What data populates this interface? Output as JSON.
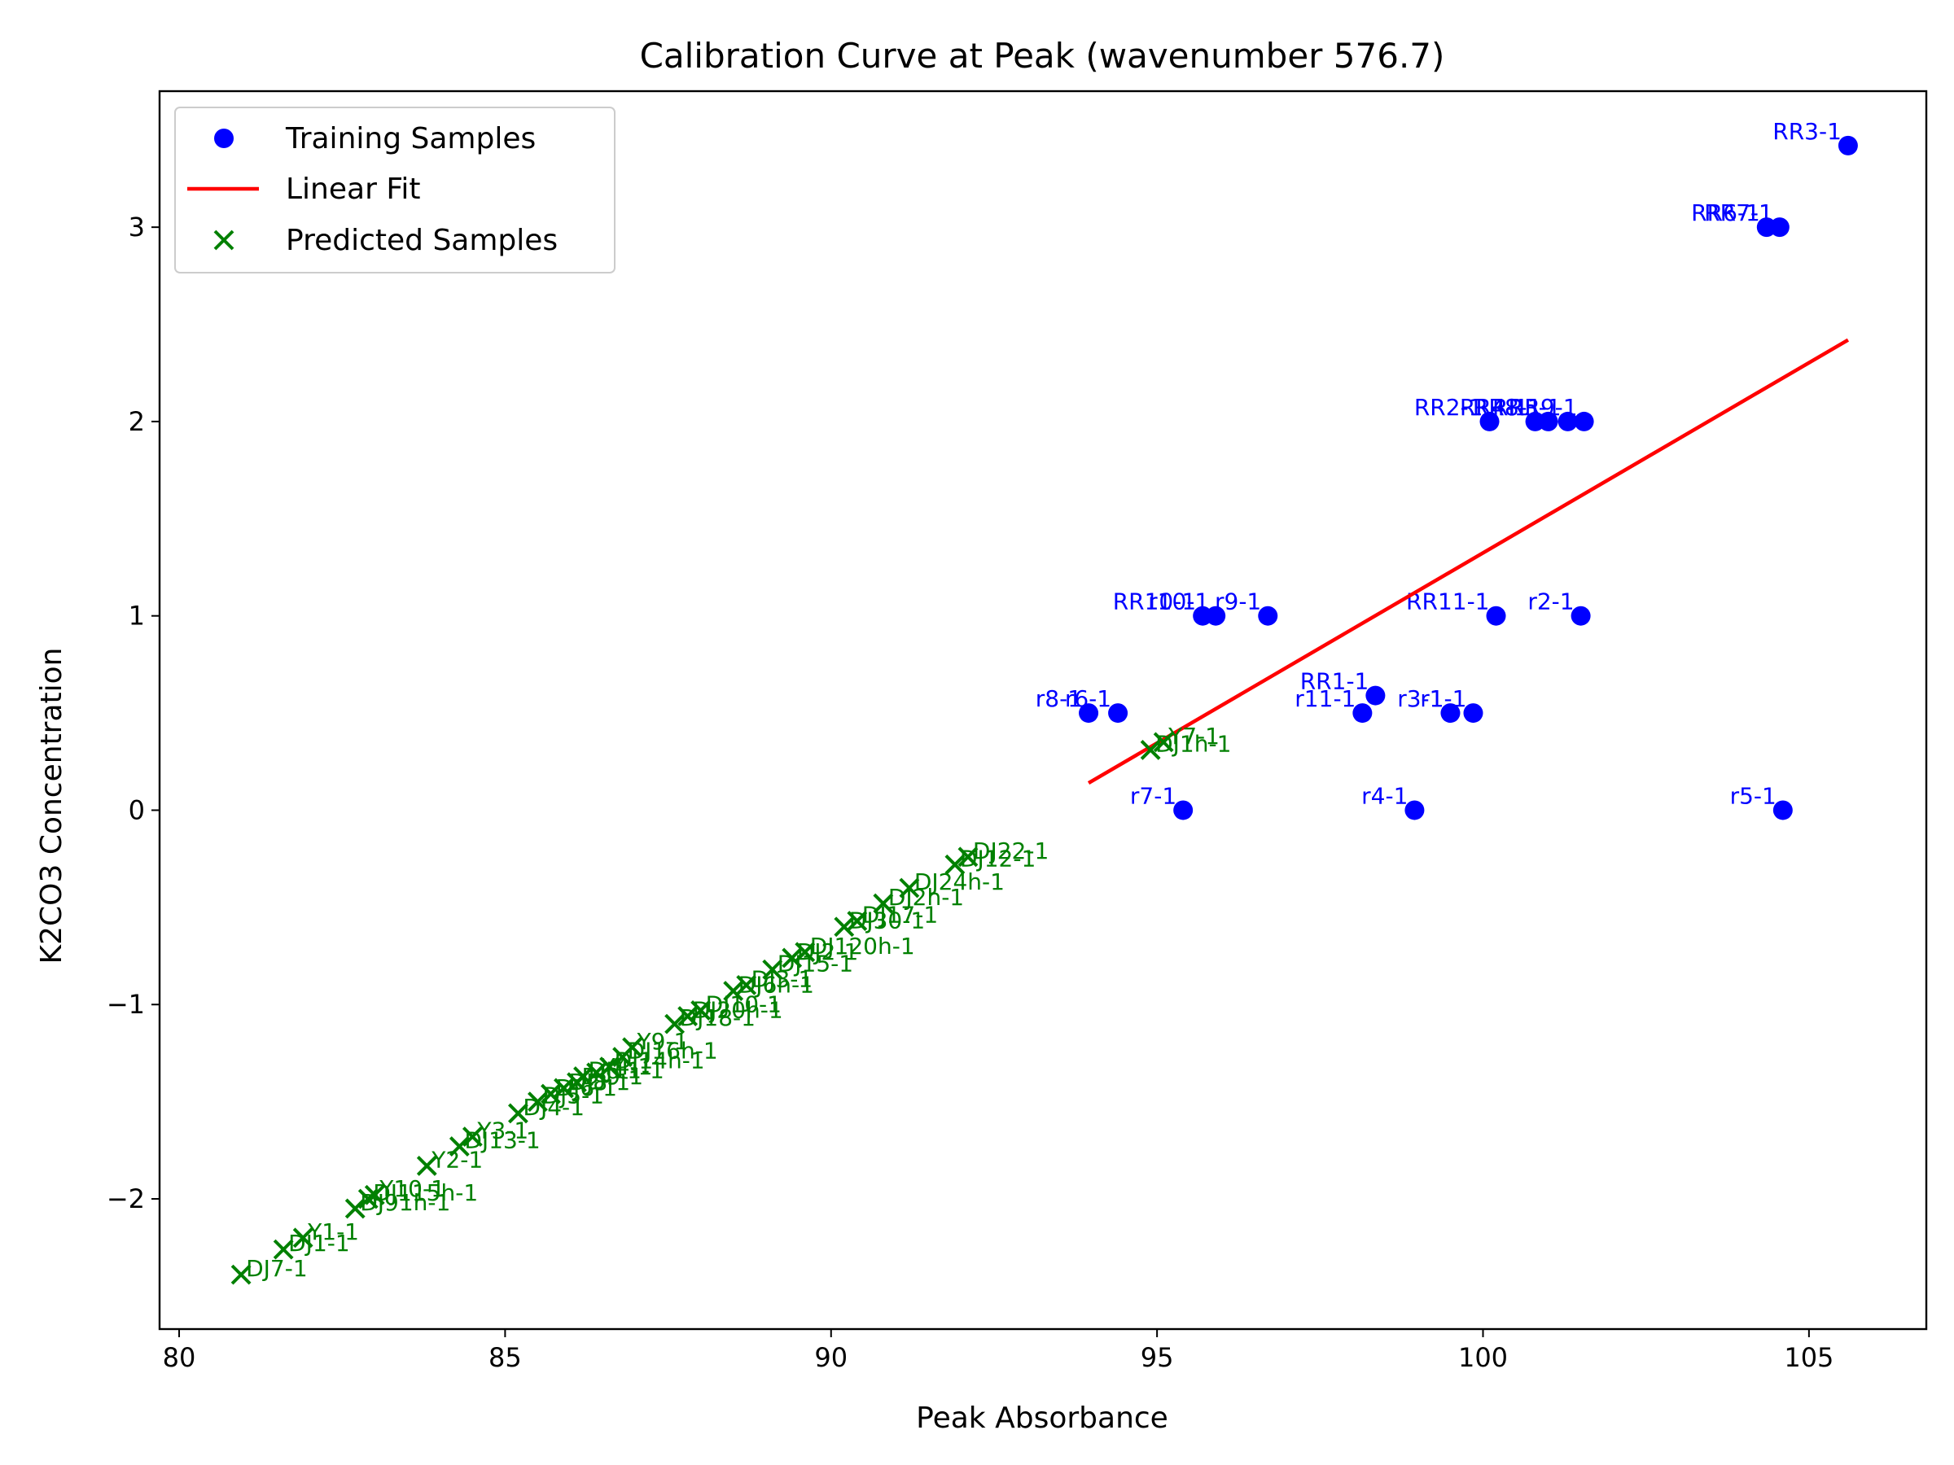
{
  "chart_data": {
    "type": "scatter",
    "title": "Calibration Curve at Peak (wavenumber 576.7)",
    "xlabel": "Peak Absorbance",
    "ylabel": "K2CO3 Concentration",
    "xlim": [
      79.7,
      106.8
    ],
    "ylim": [
      -2.67,
      3.7
    ],
    "xticks": [
      80,
      85,
      90,
      95,
      100,
      105
    ],
    "yticks": [
      -2,
      -1,
      0,
      1,
      2,
      3
    ],
    "xtick_labels": [
      "80",
      "85",
      "90",
      "95",
      "100",
      "105"
    ],
    "ytick_labels": [
      "−2",
      "−1",
      "0",
      "1",
      "2",
      "3"
    ],
    "grid": false,
    "legend": {
      "position": "top-left",
      "entries": [
        {
          "label": "Training Samples",
          "marker": "circle",
          "color": "#0000ff"
        },
        {
          "label": "Linear Fit",
          "marker": "line",
          "color": "#ff0000"
        },
        {
          "label": "Predicted Samples",
          "marker": "x",
          "color": "#008000"
        }
      ]
    },
    "series": [
      {
        "name": "Training Samples",
        "color": "#0000ff",
        "marker": "circle",
        "points": [
          {
            "x": 105.6,
            "y": 3.42,
            "label": "RR3-1"
          },
          {
            "x": 104.35,
            "y": 3.0,
            "label": "RR6-1"
          },
          {
            "x": 104.55,
            "y": 3.0,
            "label": "RR7-1"
          },
          {
            "x": 100.1,
            "y": 2.0,
            "label": "RR2-1"
          },
          {
            "x": 100.8,
            "y": 2.0,
            "label": "RR4-1"
          },
          {
            "x": 101.0,
            "y": 2.0,
            "label": "RR8-1"
          },
          {
            "x": 101.3,
            "y": 2.0,
            "label": "RR5-1"
          },
          {
            "x": 101.55,
            "y": 2.0,
            "label": "RR9-1"
          },
          {
            "x": 95.7,
            "y": 1.0,
            "label": "RR10-1"
          },
          {
            "x": 95.9,
            "y": 1.0,
            "label": "r10-1"
          },
          {
            "x": 96.7,
            "y": 1.0,
            "label": "r9-1"
          },
          {
            "x": 100.2,
            "y": 1.0,
            "label": "RR11-1"
          },
          {
            "x": 101.5,
            "y": 1.0,
            "label": "r2-1"
          },
          {
            "x": 93.95,
            "y": 0.5,
            "label": "r8-1"
          },
          {
            "x": 94.4,
            "y": 0.5,
            "label": "r6-1"
          },
          {
            "x": 98.35,
            "y": 0.59,
            "label": "RR1-1"
          },
          {
            "x": 98.15,
            "y": 0.5,
            "label": "r11-1"
          },
          {
            "x": 99.5,
            "y": 0.5,
            "label": "r3-1"
          },
          {
            "x": 99.85,
            "y": 0.5,
            "label": "r1-1"
          },
          {
            "x": 95.4,
            "y": 0.0,
            "label": "r7-1"
          },
          {
            "x": 98.95,
            "y": 0.0,
            "label": "r4-1"
          },
          {
            "x": 104.6,
            "y": 0.0,
            "label": "r5-1"
          }
        ]
      },
      {
        "name": "Linear Fit",
        "color": "#ff0000",
        "marker": "line",
        "points": [
          {
            "x": 93.95,
            "y": 0.14
          },
          {
            "x": 105.6,
            "y": 2.42
          }
        ]
      },
      {
        "name": "Predicted Samples",
        "color": "#008000",
        "marker": "x",
        "points": [
          {
            "x": 80.95,
            "y": -2.39,
            "label": "DJ7-1"
          },
          {
            "x": 81.6,
            "y": -2.26,
            "label": "DJ1-1"
          },
          {
            "x": 81.9,
            "y": -2.2,
            "label": "Y1-1"
          },
          {
            "x": 82.7,
            "y": -2.05,
            "label": "DJ91h-1"
          },
          {
            "x": 82.9,
            "y": -2.0,
            "label": "DJ115h-1"
          },
          {
            "x": 83.0,
            "y": -1.98,
            "label": "Y10-1"
          },
          {
            "x": 83.8,
            "y": -1.83,
            "label": "Y2-1"
          },
          {
            "x": 84.3,
            "y": -1.73,
            "label": "DJ13-1"
          },
          {
            "x": 84.5,
            "y": -1.68,
            "label": "Y3-1"
          },
          {
            "x": 85.2,
            "y": -1.56,
            "label": "DJ4-1"
          },
          {
            "x": 85.5,
            "y": -1.5,
            "label": "DJ5-1"
          },
          {
            "x": 85.7,
            "y": -1.46,
            "label": "DJ6-1"
          },
          {
            "x": 85.9,
            "y": -1.43,
            "label": "DJ8-1"
          },
          {
            "x": 86.1,
            "y": -1.4,
            "label": "DJ9-1"
          },
          {
            "x": 86.2,
            "y": -1.37,
            "label": "DJ11-1"
          },
          {
            "x": 86.4,
            "y": -1.35,
            "label": "Y4-1"
          },
          {
            "x": 86.6,
            "y": -1.32,
            "label": "DJ14h-1"
          },
          {
            "x": 86.8,
            "y": -1.27,
            "label": "DJ16h-1"
          },
          {
            "x": 86.95,
            "y": -1.22,
            "label": "Y9-1"
          },
          {
            "x": 87.6,
            "y": -1.1,
            "label": "DJ18-1"
          },
          {
            "x": 87.8,
            "y": -1.06,
            "label": "DJ20h-1"
          },
          {
            "x": 88.0,
            "y": -1.03,
            "label": "DJ10-1"
          },
          {
            "x": 88.5,
            "y": -0.93,
            "label": "DJ6h-1"
          },
          {
            "x": 88.7,
            "y": -0.9,
            "label": "DJ3-1"
          },
          {
            "x": 89.1,
            "y": -0.82,
            "label": "DJ15-1"
          },
          {
            "x": 89.4,
            "y": -0.76,
            "label": "DJ2-1"
          },
          {
            "x": 89.6,
            "y": -0.73,
            "label": "DJ120h-1"
          },
          {
            "x": 90.2,
            "y": -0.6,
            "label": "DJ30-1"
          },
          {
            "x": 90.4,
            "y": -0.57,
            "label": "DJ17-1"
          },
          {
            "x": 90.8,
            "y": -0.48,
            "label": "DJ2h-1"
          },
          {
            "x": 91.2,
            "y": -0.4,
            "label": "DJ24h-1"
          },
          {
            "x": 91.9,
            "y": -0.28,
            "label": "DJ12-1"
          },
          {
            "x": 92.1,
            "y": -0.24,
            "label": "DJ22-1"
          },
          {
            "x": 94.9,
            "y": 0.31,
            "label": "DJ1h-1"
          },
          {
            "x": 95.1,
            "y": 0.35,
            "label": "Y7-1"
          }
        ]
      }
    ]
  }
}
